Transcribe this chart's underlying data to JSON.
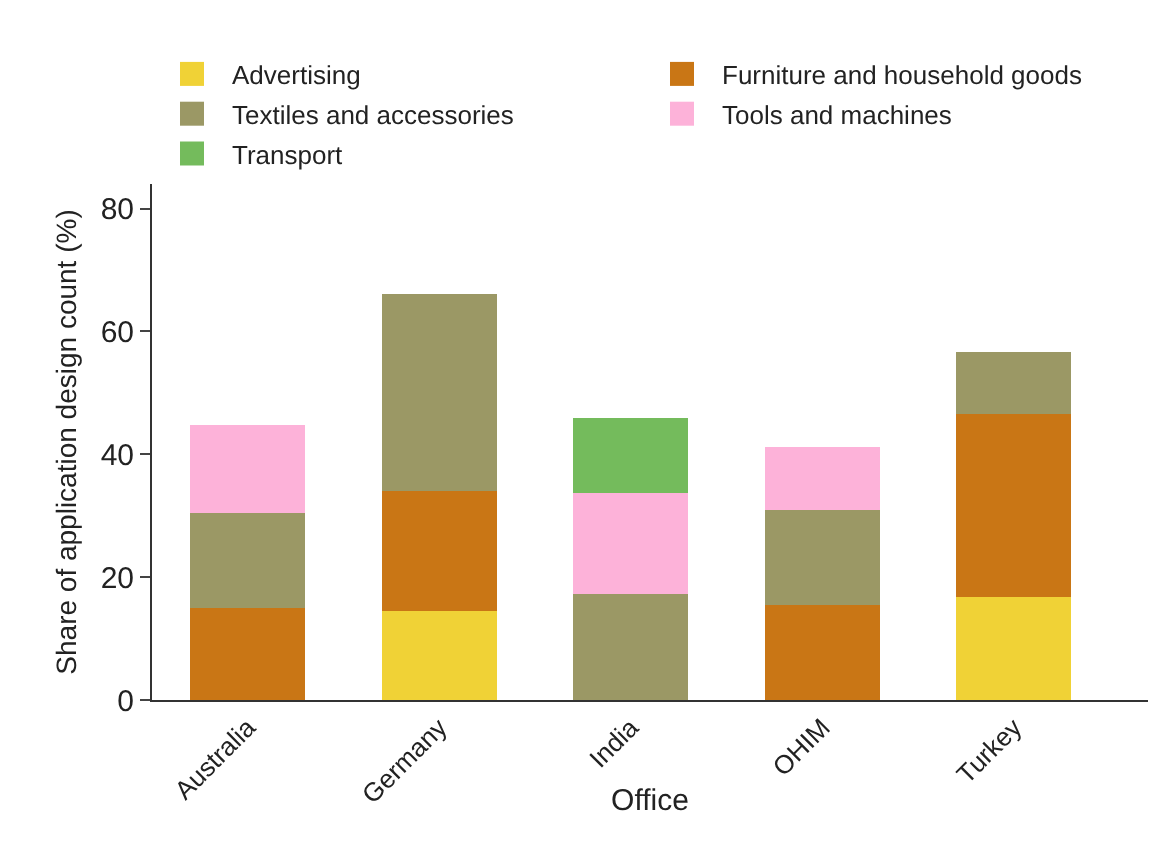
{
  "chart_data": {
    "type": "bar",
    "stacked": true,
    "xlabel": "Office",
    "ylabel": "Share of application design count (%)",
    "categories": [
      "Australia",
      "Germany",
      "India",
      "OHIM",
      "Turkey"
    ],
    "series": [
      {
        "name": "Advertising",
        "color": "#f0d236",
        "values": [
          null,
          14.5,
          null,
          null,
          16.8
        ]
      },
      {
        "name": "Furniture and household goods",
        "color": "#c97615",
        "values": [
          15.0,
          19.5,
          null,
          15.4,
          29.7
        ]
      },
      {
        "name": "Textiles and accessories",
        "color": "#9b9865",
        "values": [
          15.4,
          32.1,
          17.3,
          15.5,
          10.2
        ]
      },
      {
        "name": "Tools and machines",
        "color": "#fdb2d9",
        "values": [
          14.4,
          null,
          16.4,
          10.3,
          null
        ]
      },
      {
        "name": "Transport",
        "color": "#74bb5c",
        "values": [
          null,
          null,
          12.2,
          null,
          null
        ]
      }
    ],
    "ylim": [
      0,
      84
    ],
    "yticks": [
      0,
      20,
      40,
      60,
      80
    ],
    "grid": false,
    "legend": "top"
  }
}
